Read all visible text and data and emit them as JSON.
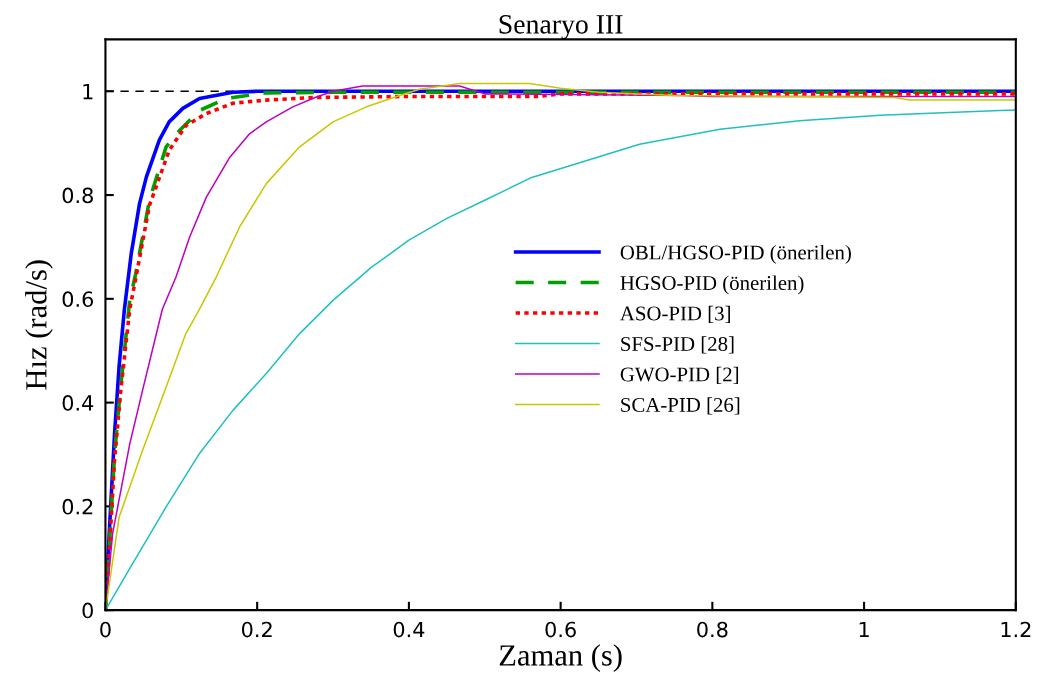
{
  "chart_data": {
    "type": "line",
    "title": "Senaryo III",
    "xlabel": "Zaman (s)",
    "ylabel": "Hız (rad/s)",
    "xlim": [
      0,
      1.2
    ],
    "ylim": [
      0,
      1.1
    ],
    "xticks": [
      0,
      0.2,
      0.4,
      0.6,
      0.8,
      1,
      1.2
    ],
    "yticks": [
      0,
      0.2,
      0.4,
      0.6,
      0.8,
      1
    ],
    "grid": false,
    "legend": "right",
    "marker": "none",
    "ref_lines": [
      {
        "axis": "y",
        "value": 1,
        "color": "#000000",
        "line_style": "dashed"
      }
    ],
    "series": [
      {
        "name": "OBL/HGSO-PID (önerilen)",
        "color": "#0000ff",
        "line_style": "solid",
        "x": [
          0,
          0.005,
          0.012,
          0.018,
          0.025,
          0.034,
          0.045,
          0.054,
          0.071,
          0.084,
          0.102,
          0.124,
          0.168,
          0.2,
          0.4,
          0.8,
          1.2
        ],
        "values": [
          0,
          0.148,
          0.34,
          0.47,
          0.58,
          0.687,
          0.784,
          0.835,
          0.906,
          0.941,
          0.967,
          0.986,
          0.998,
          1.0,
          1.0,
          1.0,
          1.0
        ]
      },
      {
        "name": "HGSO-PID (önerilen)",
        "color": "#00a000",
        "line_style": "dashed",
        "x": [
          0,
          0.005,
          0.012,
          0.02,
          0.032,
          0.04,
          0.058,
          0.08,
          0.098,
          0.124,
          0.159,
          0.212,
          0.3,
          0.6,
          0.9,
          1.2
        ],
        "values": [
          0,
          0.12,
          0.3,
          0.43,
          0.597,
          0.649,
          0.79,
          0.893,
          0.925,
          0.963,
          0.986,
          0.997,
          0.998,
          0.998,
          0.998,
          0.998
        ]
      },
      {
        "name": "ASO-PID [3]",
        "color": "#ff0000",
        "line_style": "dotted",
        "x": [
          0,
          0.005,
          0.012,
          0.02,
          0.032,
          0.04,
          0.058,
          0.084,
          0.106,
          0.133,
          0.168,
          0.212,
          0.273,
          0.4,
          0.57,
          0.6,
          0.9,
          1.2
        ],
        "values": [
          0,
          0.11,
          0.29,
          0.42,
          0.58,
          0.64,
          0.78,
          0.886,
          0.934,
          0.957,
          0.977,
          0.983,
          0.988,
          0.99,
          0.99,
          0.995,
          0.995,
          0.995
        ]
      },
      {
        "name": "SFS-PID [28]",
        "color": "#20c0c0",
        "line_style": "solid",
        "x": [
          0,
          0.036,
          0.08,
          0.124,
          0.168,
          0.212,
          0.256,
          0.3,
          0.35,
          0.4,
          0.45,
          0.5,
          0.562,
          0.704,
          0.81,
          0.915,
          1.021,
          1.179,
          1.2
        ],
        "values": [
          0,
          0.09,
          0.199,
          0.302,
          0.385,
          0.456,
          0.533,
          0.597,
          0.66,
          0.713,
          0.755,
          0.79,
          0.834,
          0.898,
          0.927,
          0.943,
          0.954,
          0.963,
          0.964
        ]
      },
      {
        "name": "GWO-PID [2]",
        "color": "#c000c0",
        "line_style": "solid",
        "x": [
          0,
          0.0095,
          0.032,
          0.049,
          0.075,
          0.093,
          0.111,
          0.133,
          0.164,
          0.19,
          0.212,
          0.247,
          0.278,
          0.3,
          0.339,
          0.467,
          0.5,
          0.762,
          0.8,
          1.2
        ],
        "values": [
          0,
          0.148,
          0.32,
          0.424,
          0.58,
          0.642,
          0.719,
          0.796,
          0.873,
          0.918,
          0.941,
          0.97,
          0.989,
          1.0,
          1.01,
          1.01,
          0.995,
          0.992,
          0.99,
          0.99
        ]
      },
      {
        "name": "SCA-PID [26]",
        "color": "#c8c800",
        "line_style": "solid",
        "x": [
          0,
          0.018,
          0.049,
          0.08,
          0.106,
          0.124,
          0.146,
          0.177,
          0.212,
          0.256,
          0.3,
          0.344,
          0.388,
          0.414,
          0.467,
          0.559,
          0.6,
          0.65,
          0.75,
          1.04,
          1.06,
          1.2
        ],
        "values": [
          0,
          0.179,
          0.308,
          0.43,
          0.533,
          0.58,
          0.642,
          0.739,
          0.822,
          0.893,
          0.941,
          0.97,
          0.992,
          1.004,
          1.015,
          1.015,
          1.006,
          0.998,
          0.992,
          0.988,
          0.983,
          0.983
        ]
      }
    ]
  }
}
